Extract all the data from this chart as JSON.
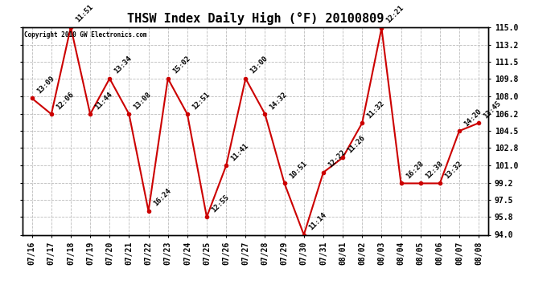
{
  "title": "THSW Index Daily High (°F) 20100809",
  "copyright": "Copyright 2010 GW Electronics.com",
  "x_labels": [
    "07/16",
    "07/17",
    "07/18",
    "07/19",
    "07/20",
    "07/21",
    "07/22",
    "07/23",
    "07/24",
    "07/25",
    "07/26",
    "07/27",
    "07/28",
    "07/29",
    "07/30",
    "07/31",
    "08/01",
    "08/02",
    "08/03",
    "08/04",
    "08/05",
    "08/06",
    "08/07",
    "08/08"
  ],
  "y_values": [
    107.8,
    106.2,
    115.0,
    106.2,
    109.8,
    106.2,
    96.4,
    109.8,
    106.2,
    95.8,
    101.0,
    109.8,
    106.2,
    99.2,
    94.0,
    100.3,
    101.8,
    105.3,
    114.9,
    99.2,
    99.2,
    99.2,
    104.5,
    105.3
  ],
  "point_labels": [
    "13:09",
    "12:06",
    "11:51",
    "11:44",
    "13:34",
    "13:08",
    "16:24",
    "15:02",
    "12:51",
    "12:55",
    "11:41",
    "13:00",
    "14:32",
    "10:51",
    "11:14",
    "12:22",
    "11:26",
    "11:32",
    "12:21",
    "16:28",
    "12:38",
    "13:32",
    "14:20",
    "13:45"
  ],
  "ylim": [
    94.0,
    115.0
  ],
  "yticks": [
    94.0,
    95.8,
    97.5,
    99.2,
    101.0,
    102.8,
    104.5,
    106.2,
    108.0,
    109.8,
    111.5,
    113.2,
    115.0
  ],
  "line_color": "#cc0000",
  "marker_color": "#cc0000",
  "bg_color": "#ffffff",
  "grid_color": "#bbbbbb",
  "title_fontsize": 11,
  "tick_fontsize": 7,
  "point_label_fontsize": 6.5
}
